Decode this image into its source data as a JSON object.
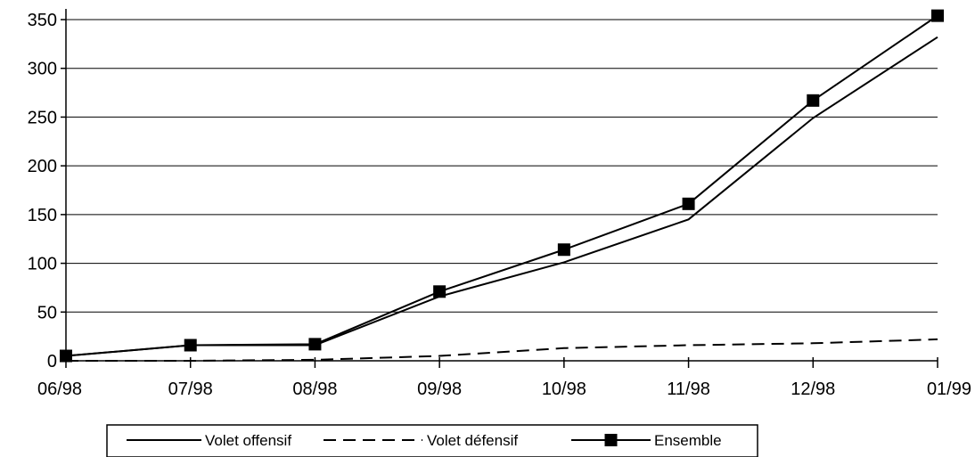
{
  "chart_data": {
    "type": "line",
    "title": "",
    "xlabel": "",
    "ylabel": "",
    "categories": [
      "06/98",
      "07/98",
      "08/98",
      "09/98",
      "10/98",
      "11/98",
      "12/98",
      "01/99"
    ],
    "ylim": [
      0,
      350
    ],
    "yticks": [
      0,
      50,
      100,
      150,
      200,
      250,
      300,
      350
    ],
    "grid": "horizontal",
    "legend_position": "bottom",
    "series": [
      {
        "name": "Volet offensif",
        "style": "solid",
        "marker": "none",
        "color": "#000000",
        "values": [
          5,
          16,
          16,
          66,
          101,
          145,
          249,
          332
        ]
      },
      {
        "name": "Volet défensif",
        "style": "dashed",
        "marker": "none",
        "color": "#000000",
        "values": [
          0,
          0,
          1,
          5,
          13,
          16,
          18,
          22
        ]
      },
      {
        "name": "Ensemble",
        "style": "solid",
        "marker": "square",
        "color": "#000000",
        "values": [
          5,
          16,
          17,
          71,
          114,
          161,
          267,
          354
        ]
      }
    ]
  }
}
